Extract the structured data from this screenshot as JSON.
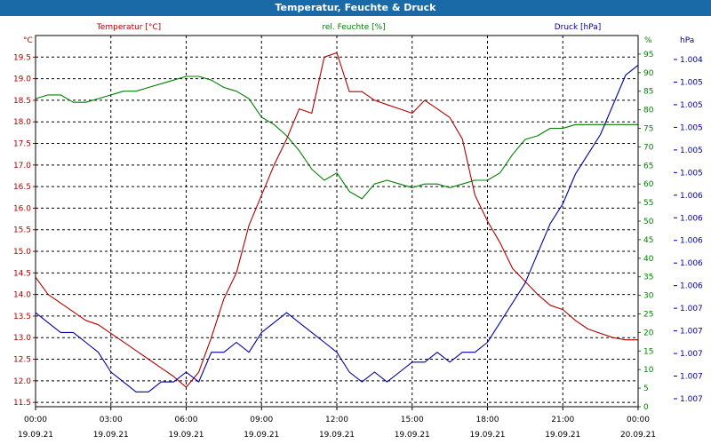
{
  "chart_data": {
    "type": "line",
    "title": "Temperatur, Feuchte & Druck",
    "grid": true,
    "x_ticks": [
      {
        "time": "00:00",
        "date": "19.09.21"
      },
      {
        "time": "03:00",
        "date": "19.09.21"
      },
      {
        "time": "06:00",
        "date": "19.09.21"
      },
      {
        "time": "09:00",
        "date": "19.09.21"
      },
      {
        "time": "12:00",
        "date": "19.09.21"
      },
      {
        "time": "15:00",
        "date": "19.09.21"
      },
      {
        "time": "18:00",
        "date": "19.09.21"
      },
      {
        "time": "21:00",
        "date": "19.09.21"
      },
      {
        "time": "00:00",
        "date": "20.09.21"
      }
    ],
    "x_range_hours": [
      0,
      24
    ],
    "axes": {
      "temperature": {
        "label": "Temperatur [°C]",
        "unit": "°C",
        "ylim": [
          11.4,
          20.0
        ],
        "color": "#b00000",
        "ticks": [
          "11.5",
          "12.0",
          "12.5",
          "13.0",
          "13.5",
          "14.0",
          "14.5",
          "15.0",
          "15.5",
          "16.0",
          "16.5",
          "17.0",
          "17.5",
          "18.0",
          "18.5",
          "19.0",
          "19.5"
        ]
      },
      "humidity": {
        "label": "rel. Feuchte [%]",
        "unit": "%",
        "ylim": [
          0,
          100
        ],
        "color": "#008000",
        "ticks": [
          "0",
          "5",
          "10",
          "15",
          "20",
          "25",
          "30",
          "35",
          "40",
          "45",
          "50",
          "55",
          "60",
          "65",
          "70",
          "75",
          "80",
          "85",
          "90",
          "95"
        ]
      },
      "pressure": {
        "label": "Druck [hPa]",
        "unit": "hPa",
        "color": "#0000a0",
        "ticks": [
          "1.004",
          "1.005",
          "1.005",
          "1.005",
          "1.005",
          "1.005",
          "1.006",
          "1.006",
          "1.006",
          "1.006",
          "1.006",
          "1.007",
          "1.007",
          "1.007",
          "1.007",
          "1.007"
        ]
      }
    },
    "series": [
      {
        "name": "Temperatur [°C]",
        "axis": "temperature",
        "color": "#b00000",
        "x": [
          0,
          0.5,
          1,
          1.5,
          2,
          2.5,
          3,
          3.5,
          4,
          4.5,
          5,
          5.5,
          6,
          6.5,
          7,
          7.5,
          8,
          8.5,
          9,
          9.5,
          10,
          10.5,
          11,
          11.5,
          12,
          12.5,
          13,
          13.5,
          14,
          14.5,
          15,
          15.5,
          16,
          16.5,
          17,
          17.5,
          18,
          18.5,
          19,
          19.5,
          20,
          20.5,
          21,
          21.5,
          22,
          22.5,
          23,
          23.5,
          24
        ],
        "values": [
          14.4,
          14.0,
          13.8,
          13.6,
          13.4,
          13.3,
          13.1,
          12.9,
          12.7,
          12.5,
          12.3,
          12.1,
          11.85,
          12.2,
          13.0,
          13.9,
          14.5,
          15.6,
          16.3,
          17.0,
          17.6,
          18.3,
          18.2,
          19.5,
          19.6,
          18.7,
          18.7,
          18.5,
          18.4,
          18.3,
          18.2,
          18.5,
          18.3,
          18.1,
          17.6,
          16.3,
          15.7,
          15.2,
          14.6,
          14.3,
          14.0,
          13.75,
          13.65,
          13.4,
          13.2,
          13.1,
          13.0,
          12.95,
          12.95
        ]
      },
      {
        "name": "rel. Feuchte [%]",
        "axis": "humidity",
        "color": "#008000",
        "x": [
          0,
          0.5,
          1,
          1.5,
          2,
          2.5,
          3,
          3.5,
          4,
          4.5,
          5,
          5.5,
          6,
          6.5,
          7,
          7.5,
          8,
          8.5,
          9,
          9.5,
          10,
          10.5,
          11,
          11.5,
          12,
          12.5,
          13,
          13.5,
          14,
          14.5,
          15,
          15.5,
          16,
          16.5,
          17,
          17.5,
          18,
          18.5,
          19,
          19.5,
          20,
          20.5,
          21,
          21.5,
          22,
          22.5,
          23,
          23.5,
          24
        ],
        "values": [
          83,
          84,
          84,
          82,
          82,
          83,
          84,
          85,
          85,
          86,
          87,
          88,
          89,
          89,
          88,
          86,
          85,
          83,
          78,
          76,
          73,
          69,
          64,
          61,
          63,
          58,
          56,
          60,
          61,
          60,
          59,
          60,
          60,
          59,
          60,
          61,
          61,
          63,
          68,
          72,
          73,
          75,
          75,
          76,
          76,
          76,
          76,
          76,
          76
        ]
      },
      {
        "name": "Druck [hPa]",
        "axis": "pressure",
        "color": "#0000a0",
        "x": [
          0,
          0.5,
          1,
          1.5,
          2,
          2.5,
          3,
          3.5,
          4,
          4.5,
          5,
          5.5,
          6,
          6.5,
          7,
          7.5,
          8,
          8.5,
          9,
          9.5,
          10,
          10.5,
          11,
          11.5,
          12,
          12.5,
          13,
          13.5,
          14,
          14.5,
          15,
          15.5,
          16,
          16.5,
          17,
          17.5,
          18,
          18.5,
          19,
          19.5,
          20,
          20.5,
          21,
          21.5,
          22,
          22.5,
          23,
          23.5,
          24
        ],
        "values": [
          1.0052,
          1.0051,
          1.005,
          1.005,
          1.0049,
          1.0048,
          1.0046,
          1.0045,
          1.0044,
          1.0044,
          1.0045,
          1.0045,
          1.0046,
          1.0045,
          1.0048,
          1.0048,
          1.0049,
          1.0048,
          1.005,
          1.0051,
          1.0052,
          1.0051,
          1.005,
          1.0049,
          1.0048,
          1.0046,
          1.0045,
          1.0046,
          1.0045,
          1.0046,
          1.0047,
          1.0047,
          1.0048,
          1.0047,
          1.0048,
          1.0048,
          1.0049,
          1.0051,
          1.0053,
          1.0055,
          1.0058,
          1.0061,
          1.0063,
          1.0066,
          1.0068,
          1.007,
          1.0073,
          1.0076,
          1.0077
        ]
      }
    ]
  }
}
